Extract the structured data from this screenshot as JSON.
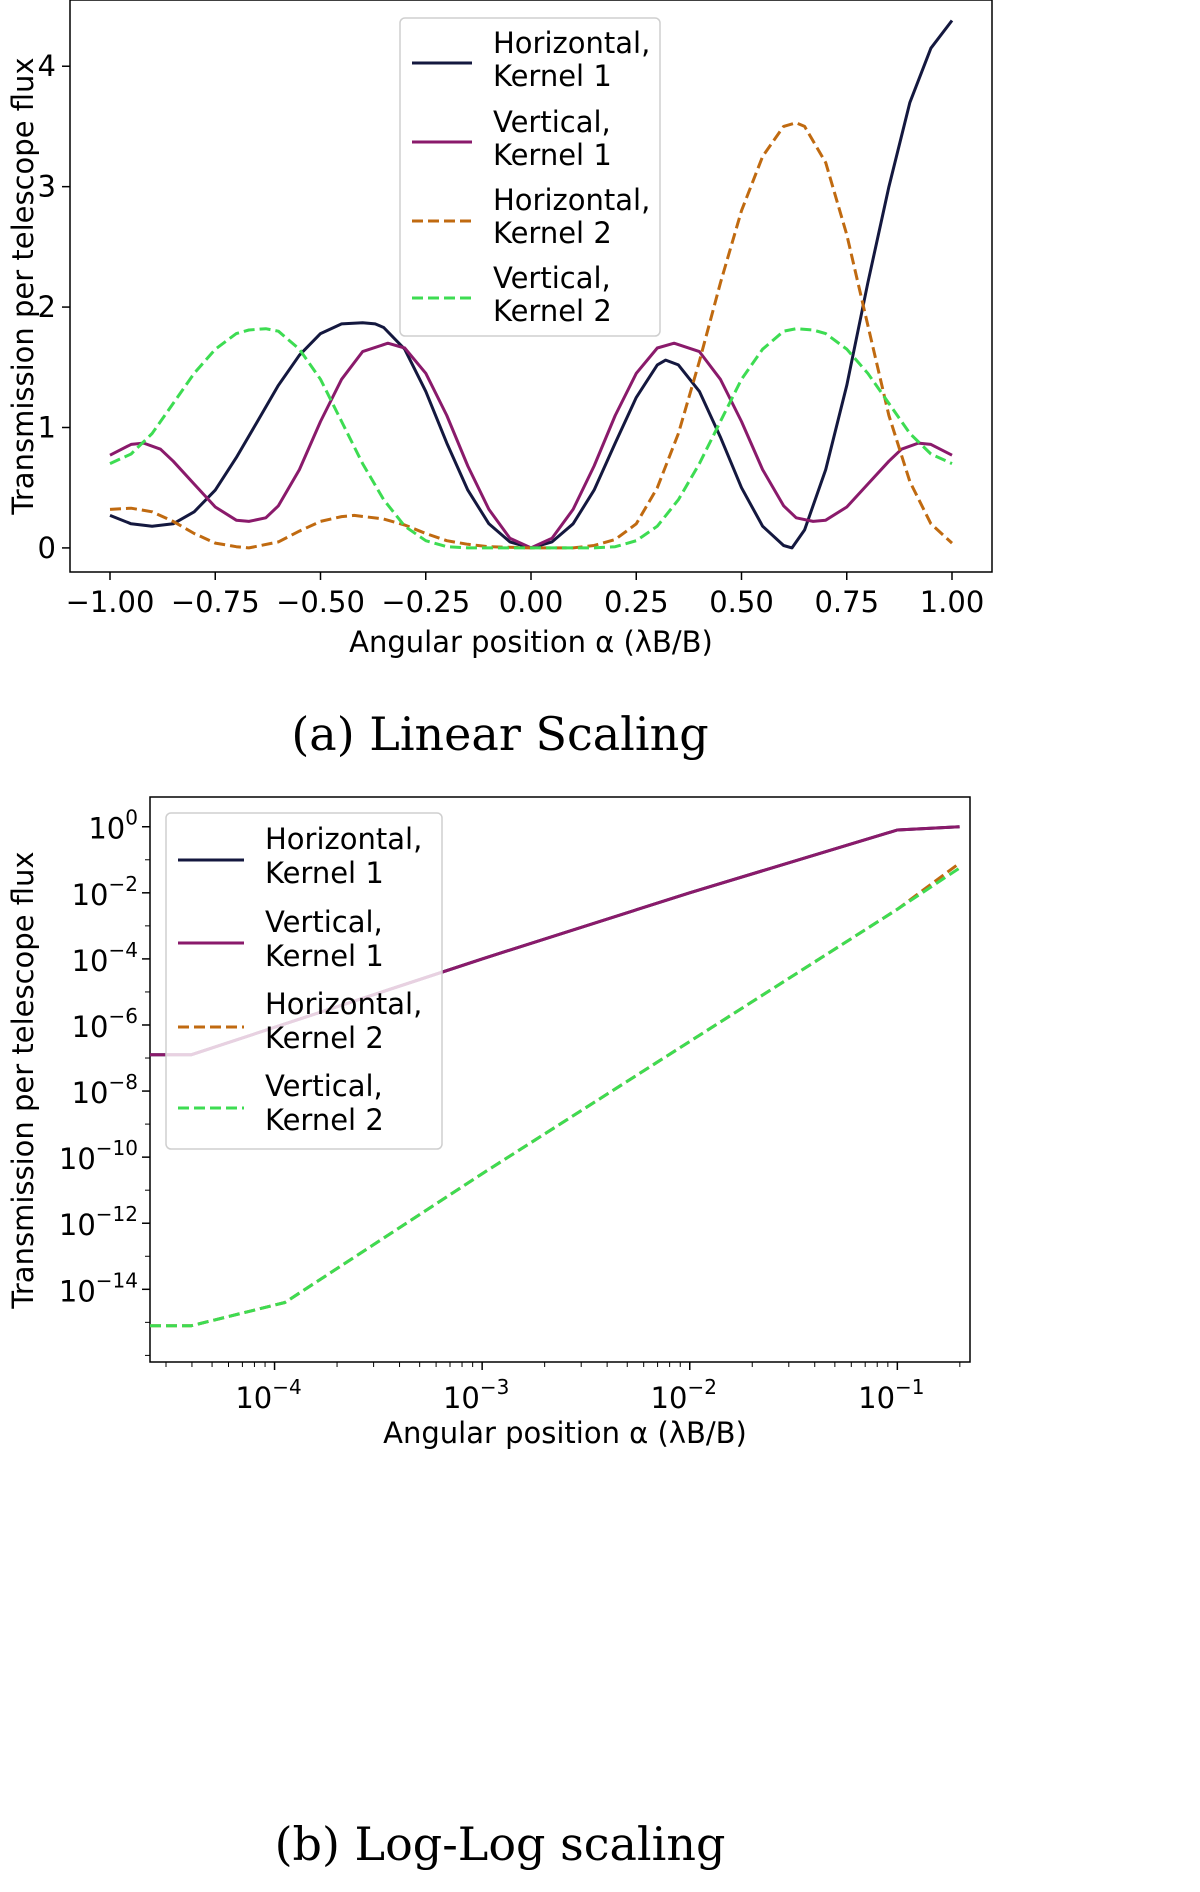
{
  "chart_data": [
    {
      "id": "a",
      "type": "line",
      "caption": "(a) Linear Scaling",
      "xlabel": "Angular position α (λB/B)",
      "ylabel": "Transmission per telescope flux",
      "xlim": [
        -1.0,
        1.0
      ],
      "ylim": [
        -0.2,
        4.55
      ],
      "xticks": [
        -1.0,
        -0.75,
        -0.5,
        -0.25,
        0.0,
        0.25,
        0.5,
        0.75,
        1.0
      ],
      "xtick_labels": [
        "−1.00",
        "−0.75",
        "−0.50",
        "−0.25",
        "0.00",
        "0.25",
        "0.50",
        "0.75",
        "1.00"
      ],
      "yticks": [
        0,
        1,
        2,
        3,
        4
      ],
      "ytick_labels": [
        "0",
        "1",
        "2",
        "3",
        "4"
      ],
      "legend_position": "upper-center",
      "series": [
        {
          "name": "Horizontal, Kernel 1",
          "line1": "Horizontal,",
          "line2": "Kernel 1",
          "color": "#14183f",
          "dash": "solid",
          "x": [
            -1.0,
            -0.95,
            -0.9,
            -0.85,
            -0.8,
            -0.75,
            -0.7,
            -0.65,
            -0.6,
            -0.55,
            -0.5,
            -0.45,
            -0.4,
            -0.37,
            -0.35,
            -0.3,
            -0.25,
            -0.2,
            -0.15,
            -0.1,
            -0.05,
            0.0,
            0.05,
            0.1,
            0.15,
            0.2,
            0.25,
            0.3,
            0.32,
            0.35,
            0.4,
            0.45,
            0.5,
            0.55,
            0.6,
            0.62,
            0.65,
            0.7,
            0.75,
            0.8,
            0.85,
            0.9,
            0.95,
            1.0
          ],
          "y": [
            0.27,
            0.2,
            0.18,
            0.2,
            0.3,
            0.48,
            0.75,
            1.05,
            1.35,
            1.6,
            1.78,
            1.86,
            1.87,
            1.86,
            1.83,
            1.65,
            1.3,
            0.87,
            0.48,
            0.2,
            0.05,
            0.0,
            0.05,
            0.2,
            0.48,
            0.87,
            1.25,
            1.52,
            1.56,
            1.52,
            1.3,
            0.92,
            0.5,
            0.18,
            0.02,
            0.0,
            0.15,
            0.65,
            1.35,
            2.2,
            3.0,
            3.7,
            4.15,
            4.38
          ]
        },
        {
          "name": "Vertical, Kernel 1",
          "line1": "Vertical,",
          "line2": "Kernel 1",
          "color": "#8a1a6b",
          "dash": "solid",
          "x": [
            -1.0,
            -0.95,
            -0.92,
            -0.88,
            -0.85,
            -0.8,
            -0.75,
            -0.7,
            -0.67,
            -0.63,
            -0.6,
            -0.55,
            -0.5,
            -0.45,
            -0.4,
            -0.34,
            -0.3,
            -0.25,
            -0.2,
            -0.15,
            -0.1,
            -0.05,
            0.0,
            0.05,
            0.1,
            0.15,
            0.2,
            0.25,
            0.3,
            0.34,
            0.4,
            0.45,
            0.5,
            0.55,
            0.6,
            0.63,
            0.67,
            0.7,
            0.75,
            0.8,
            0.85,
            0.88,
            0.92,
            0.95,
            1.0
          ],
          "y": [
            0.77,
            0.86,
            0.87,
            0.82,
            0.72,
            0.53,
            0.34,
            0.23,
            0.22,
            0.25,
            0.35,
            0.65,
            1.05,
            1.4,
            1.63,
            1.7,
            1.66,
            1.45,
            1.1,
            0.68,
            0.32,
            0.08,
            0.0,
            0.08,
            0.32,
            0.68,
            1.1,
            1.45,
            1.66,
            1.7,
            1.63,
            1.4,
            1.05,
            0.65,
            0.35,
            0.25,
            0.22,
            0.23,
            0.34,
            0.53,
            0.72,
            0.82,
            0.87,
            0.86,
            0.77
          ]
        },
        {
          "name": "Horizontal, Kernel 2",
          "line1": "Horizontal,",
          "line2": "Kernel 2",
          "color": "#c06a10",
          "dash": "dashed",
          "x": [
            -1.0,
            -0.95,
            -0.9,
            -0.85,
            -0.8,
            -0.75,
            -0.7,
            -0.67,
            -0.6,
            -0.55,
            -0.5,
            -0.45,
            -0.42,
            -0.35,
            -0.3,
            -0.25,
            -0.2,
            -0.15,
            -0.1,
            0.0,
            0.1,
            0.15,
            0.2,
            0.25,
            0.3,
            0.35,
            0.4,
            0.45,
            0.5,
            0.55,
            0.6,
            0.63,
            0.65,
            0.7,
            0.75,
            0.8,
            0.85,
            0.9,
            0.95,
            1.0
          ],
          "y": [
            0.32,
            0.33,
            0.3,
            0.22,
            0.12,
            0.04,
            0.01,
            0.0,
            0.05,
            0.14,
            0.22,
            0.26,
            0.27,
            0.24,
            0.19,
            0.12,
            0.06,
            0.03,
            0.01,
            0.0,
            0.0,
            0.02,
            0.07,
            0.2,
            0.5,
            0.95,
            1.55,
            2.2,
            2.8,
            3.25,
            3.5,
            3.53,
            3.5,
            3.2,
            2.6,
            1.85,
            1.1,
            0.55,
            0.2,
            0.04
          ]
        },
        {
          "name": "Vertical, Kernel 2",
          "line1": "Vertical,",
          "line2": "Kernel 2",
          "color": "#3ddc52",
          "dash": "dashed",
          "x": [
            -1.0,
            -0.95,
            -0.9,
            -0.85,
            -0.8,
            -0.75,
            -0.7,
            -0.67,
            -0.63,
            -0.6,
            -0.55,
            -0.5,
            -0.45,
            -0.4,
            -0.35,
            -0.3,
            -0.25,
            -0.2,
            -0.15,
            -0.1,
            0.0,
            0.1,
            0.15,
            0.2,
            0.25,
            0.3,
            0.35,
            0.4,
            0.45,
            0.5,
            0.55,
            0.6,
            0.63,
            0.67,
            0.7,
            0.75,
            0.8,
            0.85,
            0.9,
            0.95,
            1.0
          ],
          "y": [
            0.7,
            0.78,
            0.95,
            1.2,
            1.45,
            1.65,
            1.78,
            1.81,
            1.82,
            1.8,
            1.65,
            1.4,
            1.05,
            0.7,
            0.4,
            0.18,
            0.06,
            0.01,
            0.0,
            0.0,
            0.0,
            0.0,
            0.0,
            0.01,
            0.06,
            0.18,
            0.4,
            0.7,
            1.05,
            1.4,
            1.65,
            1.8,
            1.82,
            1.81,
            1.78,
            1.65,
            1.45,
            1.2,
            0.95,
            0.78,
            0.7
          ]
        }
      ]
    },
    {
      "id": "b",
      "type": "line",
      "scale": "log-log",
      "caption": "(b) Log-Log scaling",
      "xlabel": "Angular position α (λB/B)",
      "ylabel": "Transmission per telescope flux",
      "xlim_log10": [
        -4.6,
        -0.65
      ],
      "ylim_log10": [
        -16.2,
        0.9
      ],
      "xticks_log10": [
        -4,
        -3,
        -2,
        -1
      ],
      "yticks_log10": [
        0,
        -2,
        -4,
        -6,
        -8,
        -10,
        -12,
        -14
      ],
      "legend_position": "upper-left",
      "series": [
        {
          "name": "Horizontal, Kernel 1",
          "line1": "Horizontal,",
          "line2": "Kernel 1",
          "color": "#14183f",
          "dash": "solid",
          "log_x": [
            -4.6,
            -4.4,
            -3.0,
            -2.0,
            -1.0,
            -0.7
          ],
          "log_y": [
            -6.9,
            -6.9,
            -4.0,
            -2.0,
            -0.1,
            0.0
          ]
        },
        {
          "name": "Vertical, Kernel 1",
          "line1": "Vertical,",
          "line2": "Kernel 1",
          "color": "#8a1a6b",
          "dash": "solid",
          "log_x": [
            -4.6,
            -4.4,
            -3.0,
            -2.0,
            -1.0,
            -0.7
          ],
          "log_y": [
            -6.9,
            -6.9,
            -4.0,
            -2.0,
            -0.1,
            0.0
          ]
        },
        {
          "name": "Horizontal, Kernel 2",
          "line1": "Horizontal,",
          "line2": "Kernel 2",
          "color": "#c06a10",
          "dash": "dashed",
          "log_x": [
            -4.6,
            -4.4,
            -3.95,
            -3.0,
            -2.0,
            -1.0,
            -0.7
          ],
          "log_y": [
            -15.1,
            -15.1,
            -14.4,
            -10.5,
            -6.5,
            -2.5,
            -1.1
          ]
        },
        {
          "name": "Vertical, Kernel 2",
          "line1": "Vertical,",
          "line2": "Kernel 2",
          "color": "#3ddc52",
          "dash": "dashed",
          "log_x": [
            -4.6,
            -4.4,
            -3.95,
            -3.0,
            -2.0,
            -1.0,
            -0.7
          ],
          "log_y": [
            -15.1,
            -15.1,
            -14.4,
            -10.5,
            -6.5,
            -2.5,
            -1.25
          ]
        }
      ]
    }
  ]
}
